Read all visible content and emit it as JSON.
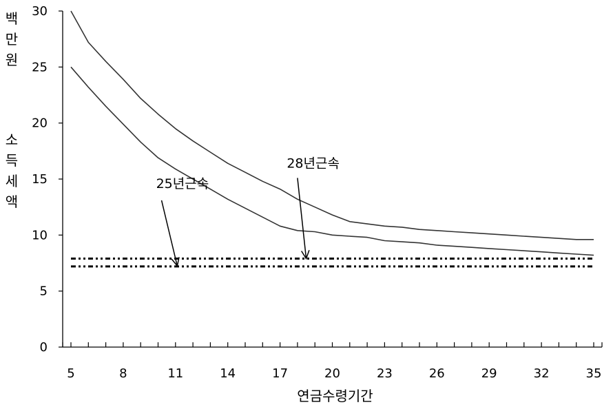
{
  "chart_data": {
    "type": "line",
    "title": "",
    "xlabel": "연금수령기간",
    "ylabel_lines": [
      "백",
      "만",
      "원",
      "소",
      "득",
      "세",
      "액"
    ],
    "x": [
      5,
      6,
      7,
      8,
      9,
      10,
      11,
      12,
      13,
      14,
      15,
      16,
      17,
      18,
      19,
      20,
      21,
      22,
      23,
      24,
      25,
      26,
      27,
      28,
      29,
      30,
      31,
      32,
      33,
      34,
      35
    ],
    "xticks": [
      5,
      8,
      11,
      14,
      17,
      20,
      23,
      26,
      29,
      32,
      35
    ],
    "xlim": [
      5,
      35
    ],
    "ylim": [
      0,
      30
    ],
    "yticks": [
      0,
      5,
      10,
      15,
      20,
      25,
      30
    ],
    "grid": false,
    "series": [
      {
        "values": [
          30,
          27.2,
          25.5,
          23.9,
          22.2,
          20.8,
          19.5,
          18.4,
          17.4,
          16.4,
          15.6,
          14.8,
          14.1,
          13.2,
          12.5,
          11.8,
          11.2,
          11.0,
          10.8,
          10.7,
          10.5,
          10.4,
          10.3,
          10.2,
          10.1,
          10.0,
          9.9,
          9.8,
          9.7,
          9.6,
          9.6
        ],
        "color": "#333333"
      },
      {
        "values": [
          25,
          23.2,
          21.5,
          19.9,
          18.3,
          16.9,
          15.9,
          15.0,
          14.1,
          13.2,
          12.4,
          11.6,
          10.8,
          10.4,
          10.3,
          10.0,
          9.9,
          9.8,
          9.5,
          9.4,
          9.3,
          9.1,
          9.0,
          8.9,
          8.8,
          8.7,
          8.6,
          8.5,
          8.4,
          8.3,
          8.2
        ],
        "color": "#333333"
      }
    ],
    "reference_lines": [
      {
        "y": 7.9,
        "style": "dash-dot-dot",
        "color": "#000000"
      },
      {
        "y": 7.2,
        "style": "dash-dot-dot",
        "color": "#000000"
      }
    ],
    "annotations": [
      {
        "text": "25년근속",
        "label_x": 11.4,
        "label_y": 14.2,
        "arrow_from": [
          10.2,
          13.1
        ],
        "arrow_to": [
          11.1,
          7.25
        ]
      },
      {
        "text": "28년근속",
        "label_x": 18.9,
        "label_y": 16.0,
        "arrow_from": [
          18.0,
          15.1
        ],
        "arrow_to": [
          18.5,
          7.9
        ]
      }
    ]
  }
}
